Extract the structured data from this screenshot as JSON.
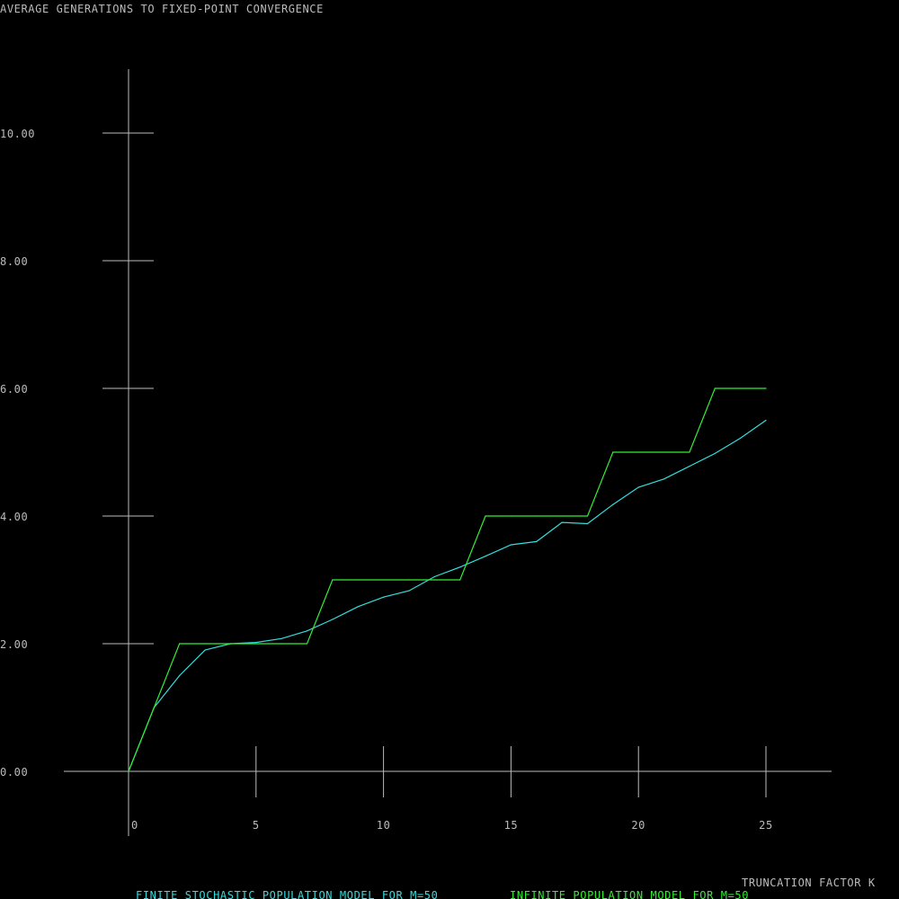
{
  "chart_data": {
    "type": "line",
    "title": "AVERAGE GENERATIONS TO FIXED-POINT CONVERGENCE",
    "xlabel": "TRUNCATION FACTOR K",
    "ylabel": "",
    "xlim": [
      0,
      25
    ],
    "ylim": [
      0,
      10
    ],
    "x_ticks": [
      {
        "value": 0,
        "label": "0"
      },
      {
        "value": 5,
        "label": "5"
      },
      {
        "value": 10,
        "label": "10"
      },
      {
        "value": 15,
        "label": "15"
      },
      {
        "value": 20,
        "label": "20"
      },
      {
        "value": 25,
        "label": "25"
      }
    ],
    "y_ticks": [
      {
        "value": 0,
        "label": "0.00"
      },
      {
        "value": 2,
        "label": "2.00"
      },
      {
        "value": 4,
        "label": "4.00"
      },
      {
        "value": 6,
        "label": "6.00"
      },
      {
        "value": 8,
        "label": "8.00"
      },
      {
        "value": 10,
        "label": "10.00"
      }
    ],
    "grid": false,
    "legend_position": "bottom",
    "series": [
      {
        "name": "FINITE STOCHASTIC POPULATION MODEL FOR M=50",
        "color": "#33dddd",
        "x": [
          0,
          1,
          2,
          3,
          4,
          5,
          6,
          7,
          8,
          9,
          10,
          11,
          12,
          13,
          14,
          15,
          16,
          17,
          18,
          19,
          20,
          21,
          22,
          23,
          24,
          25
        ],
        "y": [
          0,
          1.0,
          1.5,
          1.9,
          2.0,
          2.02,
          2.08,
          2.2,
          2.38,
          2.58,
          2.73,
          2.83,
          3.05,
          3.2,
          3.37,
          3.55,
          3.6,
          3.9,
          3.88,
          4.18,
          4.45,
          4.58,
          4.78,
          4.98,
          5.22,
          5.5
        ]
      },
      {
        "name": "INFINITE POPULATION MODEL FOR M=50",
        "color": "#33ee33",
        "x": [
          0,
          1,
          2,
          3,
          4,
          5,
          6,
          7,
          8,
          9,
          10,
          11,
          12,
          13,
          14,
          15,
          16,
          17,
          18,
          19,
          20,
          21,
          22,
          23,
          24,
          25
        ],
        "y": [
          0,
          1,
          2,
          2,
          2,
          2,
          2,
          2,
          3,
          3,
          3,
          3,
          3,
          3,
          4,
          4,
          4,
          4,
          4,
          5,
          5,
          5,
          5,
          6,
          6,
          6
        ]
      }
    ]
  },
  "colors": {
    "background": "#000000",
    "axis": "#bbbbbb",
    "text": "#bbbbbb"
  }
}
